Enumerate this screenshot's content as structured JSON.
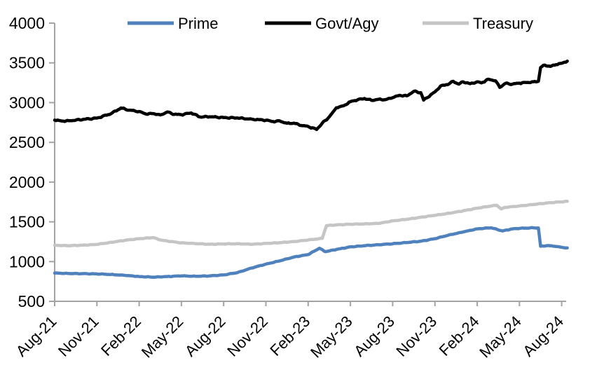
{
  "chart_data": {
    "type": "line",
    "title": "",
    "grid": false,
    "legend_position": "top",
    "axis_color": "#a3a3a3",
    "x_axis": {
      "unit": "month",
      "tick_months": [
        0,
        3,
        6,
        9,
        12,
        15,
        18,
        21,
        24,
        27,
        30,
        33,
        36
      ],
      "tick_labels": [
        "Aug-21",
        "Nov-21",
        "Feb-22",
        "May-22",
        "Aug-22",
        "Nov-22",
        "Feb-23",
        "May-23",
        "Aug-23",
        "Nov-23",
        "Feb-24",
        "May-24",
        "Aug-24"
      ],
      "range_months": [
        0,
        36.4
      ]
    },
    "y_axis": {
      "min": 500,
      "max": 4000,
      "step": 500,
      "tick_labels": [
        "500",
        "1000",
        "1500",
        "2000",
        "2500",
        "3000",
        "3500",
        "4000"
      ]
    },
    "legend": [
      {
        "label": "Prime",
        "color": "#4f81bd"
      },
      {
        "label": "Govt/Agy",
        "color": "#000000"
      },
      {
        "label": "Treasury",
        "color": "#c5c5c5"
      }
    ],
    "series": [
      {
        "name": "Prime",
        "color": "#4f81bd",
        "points": [
          [
            0,
            855
          ],
          [
            1,
            850
          ],
          [
            2,
            848
          ],
          [
            3,
            845
          ],
          [
            4,
            838
          ],
          [
            5,
            826
          ],
          [
            6,
            812
          ],
          [
            7,
            804
          ],
          [
            8,
            812
          ],
          [
            9,
            820
          ],
          [
            10,
            815
          ],
          [
            11,
            820
          ],
          [
            12,
            832
          ],
          [
            13,
            862
          ],
          [
            14,
            920
          ],
          [
            15,
            968
          ],
          [
            16,
            1010
          ],
          [
            17,
            1058
          ],
          [
            18,
            1088
          ],
          [
            18.8,
            1168
          ],
          [
            19.2,
            1125
          ],
          [
            20,
            1152
          ],
          [
            21,
            1185
          ],
          [
            22,
            1200
          ],
          [
            23,
            1212
          ],
          [
            24,
            1224
          ],
          [
            25,
            1240
          ],
          [
            26,
            1256
          ],
          [
            27,
            1288
          ],
          [
            28,
            1335
          ],
          [
            29,
            1372
          ],
          [
            30,
            1412
          ],
          [
            31,
            1425
          ],
          [
            31.8,
            1385
          ],
          [
            32.5,
            1412
          ],
          [
            33,
            1418
          ],
          [
            34,
            1425
          ],
          [
            34.35,
            1422
          ],
          [
            34.5,
            1192
          ],
          [
            35,
            1202
          ],
          [
            35.5,
            1192
          ],
          [
            36,
            1180
          ],
          [
            36.4,
            1172
          ]
        ]
      },
      {
        "name": "Govt/Agy",
        "color": "#000000",
        "points": [
          [
            0,
            2780
          ],
          [
            0.5,
            2768
          ],
          [
            1,
            2772
          ],
          [
            2,
            2788
          ],
          [
            3,
            2805
          ],
          [
            4,
            2860
          ],
          [
            4.7,
            2932
          ],
          [
            5.3,
            2905
          ],
          [
            6,
            2888
          ],
          [
            6.5,
            2855
          ],
          [
            7,
            2862
          ],
          [
            7.5,
            2845
          ],
          [
            8,
            2882
          ],
          [
            8.5,
            2852
          ],
          [
            9,
            2848
          ],
          [
            9.7,
            2870
          ],
          [
            10.3,
            2820
          ],
          [
            11,
            2822
          ],
          [
            12,
            2812
          ],
          [
            13,
            2806
          ],
          [
            14,
            2792
          ],
          [
            15,
            2778
          ],
          [
            15.5,
            2762
          ],
          [
            16,
            2768
          ],
          [
            16.5,
            2740
          ],
          [
            17,
            2742
          ],
          [
            17.5,
            2712
          ],
          [
            18,
            2700
          ],
          [
            18.6,
            2662
          ],
          [
            19,
            2742
          ],
          [
            19.4,
            2800
          ],
          [
            20,
            2935
          ],
          [
            20.5,
            2960
          ],
          [
            21,
            3012
          ],
          [
            21.5,
            3035
          ],
          [
            22,
            3052
          ],
          [
            22.5,
            3028
          ],
          [
            23,
            3042
          ],
          [
            23.5,
            3038
          ],
          [
            24,
            3062
          ],
          [
            24.5,
            3092
          ],
          [
            25,
            3085
          ],
          [
            25.5,
            3142
          ],
          [
            26,
            3125
          ],
          [
            26.2,
            3032
          ],
          [
            27,
            3135
          ],
          [
            27.4,
            3208
          ],
          [
            28,
            3235
          ],
          [
            28.3,
            3268
          ],
          [
            28.7,
            3232
          ],
          [
            29,
            3262
          ],
          [
            29.5,
            3238
          ],
          [
            30,
            3262
          ],
          [
            30.3,
            3248
          ],
          [
            30.8,
            3295
          ],
          [
            31.3,
            3275
          ],
          [
            31.6,
            3192
          ],
          [
            32,
            3242
          ],
          [
            32.5,
            3232
          ],
          [
            33,
            3245
          ],
          [
            33.5,
            3252
          ],
          [
            34,
            3262
          ],
          [
            34.35,
            3268
          ],
          [
            34.5,
            3442
          ],
          [
            34.8,
            3472
          ],
          [
            35.2,
            3455
          ],
          [
            35.6,
            3478
          ],
          [
            36,
            3495
          ],
          [
            36.4,
            3522
          ]
        ]
      },
      {
        "name": "Treasury",
        "color": "#c5c5c5",
        "points": [
          [
            0,
            1205
          ],
          [
            1,
            1200
          ],
          [
            2,
            1206
          ],
          [
            3,
            1216
          ],
          [
            4,
            1242
          ],
          [
            5,
            1268
          ],
          [
            6,
            1288
          ],
          [
            7,
            1302
          ],
          [
            7.5,
            1272
          ],
          [
            8,
            1258
          ],
          [
            9,
            1236
          ],
          [
            10,
            1226
          ],
          [
            11,
            1218
          ],
          [
            12,
            1222
          ],
          [
            13,
            1224
          ],
          [
            14,
            1218
          ],
          [
            15,
            1228
          ],
          [
            16,
            1238
          ],
          [
            17,
            1252
          ],
          [
            18,
            1272
          ],
          [
            19,
            1292
          ],
          [
            19.3,
            1452
          ],
          [
            20,
            1462
          ],
          [
            21,
            1470
          ],
          [
            22,
            1474
          ],
          [
            23,
            1480
          ],
          [
            24,
            1512
          ],
          [
            25,
            1532
          ],
          [
            26,
            1558
          ],
          [
            27,
            1582
          ],
          [
            28,
            1608
          ],
          [
            29,
            1638
          ],
          [
            30,
            1672
          ],
          [
            31,
            1700
          ],
          [
            31.4,
            1708
          ],
          [
            31.7,
            1662
          ],
          [
            32,
            1682
          ],
          [
            33,
            1700
          ],
          [
            34,
            1718
          ],
          [
            35,
            1738
          ],
          [
            36,
            1752
          ],
          [
            36.4,
            1758
          ]
        ]
      }
    ]
  }
}
